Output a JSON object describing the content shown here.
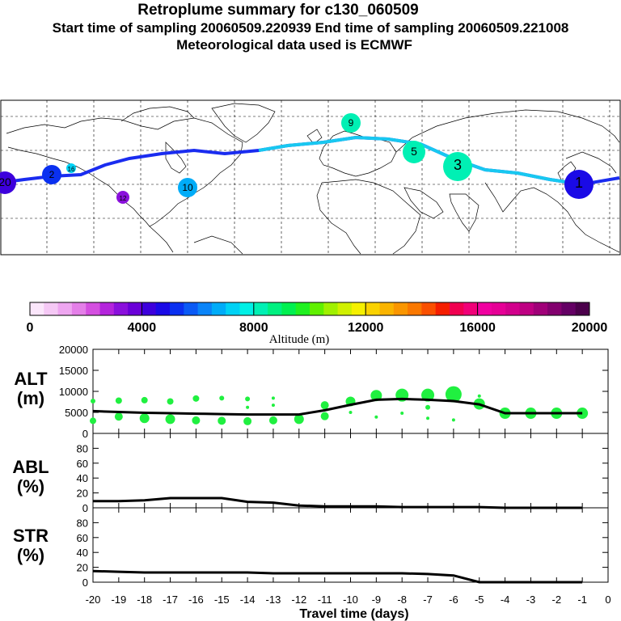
{
  "header": {
    "title": "Retroplume summary for c130_060509",
    "sampling": "Start time of sampling 20060509.220939     End time of sampling 20060509.221008",
    "met": "Meteorological data used is ECMWF"
  },
  "colorbar": {
    "ticks": [
      "0",
      "4000",
      "8000",
      "12000",
      "16000",
      "20000"
    ],
    "label": "Altitude (m)",
    "colors": [
      "#fbe6fb",
      "#f5c8f5",
      "#eea6f0",
      "#e47fe8",
      "#d44fe0",
      "#b424dc",
      "#8a10dc",
      "#6a00d8",
      "#3d00dc",
      "#1a0ae6",
      "#0a30f0",
      "#0a5af5",
      "#0a84f8",
      "#00acf8",
      "#00d2f5",
      "#00f0e6",
      "#00f0b4",
      "#00f080",
      "#00f050",
      "#20f020",
      "#60f000",
      "#a0f000",
      "#d0f000",
      "#f5f000",
      "#fad200",
      "#fab400",
      "#fa9600",
      "#fa7800",
      "#fa5000",
      "#f51e00",
      "#f00050",
      "#f00078",
      "#f000a0",
      "#e60096",
      "#d2008c",
      "#be0082",
      "#a00078",
      "#82006e",
      "#640064",
      "#4b004b"
    ]
  },
  "map": {
    "marks": [
      {
        "label": "20",
        "color": "#3d00dc"
      },
      {
        "label": "2",
        "color": "#0a30f0"
      },
      {
        "label": "16",
        "color": "#00d2f5"
      },
      {
        "label": "10",
        "color": "#00acf8"
      },
      {
        "label": "9",
        "color": "#00f0b4"
      },
      {
        "label": "5",
        "color": "#00f0b4"
      },
      {
        "label": "3",
        "color": "#00f0b4"
      },
      {
        "label": "1",
        "color": "#1a0ae6"
      },
      {
        "label": "12",
        "color": "#8a10dc"
      }
    ]
  },
  "panels": {
    "alt": {
      "label": "ALT",
      "unit": "(m)"
    },
    "abl": {
      "label": "ABL",
      "unit": "(%)"
    },
    "str": {
      "label": "STR",
      "unit": "(%)"
    },
    "xlabel": "Travel time (days)"
  },
  "chart_data": [
    {
      "type": "line",
      "name": "ALT",
      "xlabel": "Travel time (days)",
      "ylabel": "ALT (m)",
      "xlim": [
        -20,
        0
      ],
      "ylim": [
        0,
        20000
      ],
      "xticks": [
        -20,
        -19,
        -18,
        -17,
        -16,
        -15,
        -14,
        -13,
        -12,
        -11,
        -10,
        -9,
        -8,
        -7,
        -6,
        -5,
        -4,
        -3,
        -2,
        -1,
        0
      ],
      "xticklabels": [
        "-20",
        "-19",
        "-18",
        "-17",
        "-16",
        "-15",
        "-14",
        "-13",
        "-12",
        "-11",
        "-10",
        "-9",
        "-8",
        "-7",
        "-6",
        "-5",
        "-4",
        "-3",
        "-2",
        "-1",
        "0"
      ],
      "yticks": [
        0,
        5000,
        10000,
        15000,
        20000
      ],
      "yticklabels": [
        "0",
        "5000",
        "10000",
        "15000",
        "20000"
      ],
      "x": [
        -20,
        -19,
        -18,
        -17,
        -16,
        -15,
        -14,
        -13,
        -12,
        -11,
        -10,
        -9,
        -8,
        -7,
        -6,
        -5,
        -4,
        -3,
        -2,
        -1
      ],
      "y": [
        5300,
        5100,
        4900,
        4800,
        4700,
        4600,
        4500,
        4500,
        4500,
        5500,
        6800,
        8000,
        8200,
        8000,
        7700,
        6900,
        4800,
        4800,
        4800,
        4800
      ],
      "scatter": [
        {
          "x": -20,
          "y": 7700,
          "r": 3
        },
        {
          "x": -20,
          "y": 3000,
          "r": 4
        },
        {
          "x": -19,
          "y": 7800,
          "r": 4
        },
        {
          "x": -19,
          "y": 4000,
          "r": 5
        },
        {
          "x": -18,
          "y": 7900,
          "r": 4
        },
        {
          "x": -18,
          "y": 3600,
          "r": 6
        },
        {
          "x": -17,
          "y": 7600,
          "r": 4
        },
        {
          "x": -17,
          "y": 3400,
          "r": 6
        },
        {
          "x": -16,
          "y": 8300,
          "r": 4
        },
        {
          "x": -16,
          "y": 3100,
          "r": 5
        },
        {
          "x": -15,
          "y": 8400,
          "r": 3
        },
        {
          "x": -15,
          "y": 3000,
          "r": 5
        },
        {
          "x": -14,
          "y": 8200,
          "r": 3
        },
        {
          "x": -14,
          "y": 6200,
          "r": 2
        },
        {
          "x": -14,
          "y": 2900,
          "r": 5
        },
        {
          "x": -13,
          "y": 8400,
          "r": 2
        },
        {
          "x": -13,
          "y": 6700,
          "r": 2
        },
        {
          "x": -13,
          "y": 3100,
          "r": 5
        },
        {
          "x": -12,
          "y": 3400,
          "r": 6
        },
        {
          "x": -11,
          "y": 6700,
          "r": 5
        },
        {
          "x": -11,
          "y": 4100,
          "r": 5
        },
        {
          "x": -10,
          "y": 7600,
          "r": 6
        },
        {
          "x": -10,
          "y": 5000,
          "r": 2
        },
        {
          "x": -9,
          "y": 9000,
          "r": 7
        },
        {
          "x": -9,
          "y": 3900,
          "r": 2
        },
        {
          "x": -8,
          "y": 9100,
          "r": 8
        },
        {
          "x": -8,
          "y": 4800,
          "r": 2
        },
        {
          "x": -7,
          "y": 9100,
          "r": 8
        },
        {
          "x": -7,
          "y": 6200,
          "r": 3
        },
        {
          "x": -7,
          "y": 3600,
          "r": 2
        },
        {
          "x": -6,
          "y": 9300,
          "r": 10
        },
        {
          "x": -6,
          "y": 3200,
          "r": 2
        },
        {
          "x": -5,
          "y": 7000,
          "r": 7
        },
        {
          "x": -5,
          "y": 8900,
          "r": 2
        },
        {
          "x": -4,
          "y": 4800,
          "r": 7
        },
        {
          "x": -3,
          "y": 4800,
          "r": 7
        },
        {
          "x": -2,
          "y": 4800,
          "r": 7
        },
        {
          "x": -1,
          "y": 4800,
          "r": 7
        }
      ]
    },
    {
      "type": "line",
      "name": "ABL",
      "ylabel": "ABL (%)",
      "xlim": [
        -20,
        0
      ],
      "ylim": [
        0,
        100
      ],
      "yticks": [
        0,
        20,
        40,
        60,
        80
      ],
      "yticklabels": [
        "0",
        "20",
        "40",
        "60",
        "80"
      ],
      "x": [
        -20,
        -19,
        -18,
        -17,
        -16,
        -15,
        -14,
        -13,
        -12,
        -11,
        -10,
        -9,
        -8,
        -7,
        -6,
        -5,
        -4,
        -3,
        -2,
        -1
      ],
      "y": [
        9,
        9,
        10,
        13,
        13,
        13,
        8,
        7,
        3,
        2,
        2,
        2,
        1,
        1,
        1,
        1,
        0,
        0,
        0,
        0
      ]
    },
    {
      "type": "line",
      "name": "STR",
      "ylabel": "STR (%)",
      "xlim": [
        -20,
        0
      ],
      "ylim": [
        0,
        100
      ],
      "yticks": [
        0,
        20,
        40,
        60,
        80
      ],
      "yticklabels": [
        "0",
        "20",
        "40",
        "60",
        "80"
      ],
      "x": [
        -20,
        -19,
        -18,
        -17,
        -16,
        -15,
        -14,
        -13,
        -12,
        -11,
        -10,
        -9,
        -8,
        -7,
        -6,
        -5,
        -4,
        -3,
        -2,
        -1
      ],
      "y": [
        15,
        14,
        13,
        13,
        13,
        13,
        13,
        12,
        12,
        12,
        12,
        12,
        12,
        11,
        9,
        0,
        0,
        0,
        0,
        0
      ]
    }
  ]
}
